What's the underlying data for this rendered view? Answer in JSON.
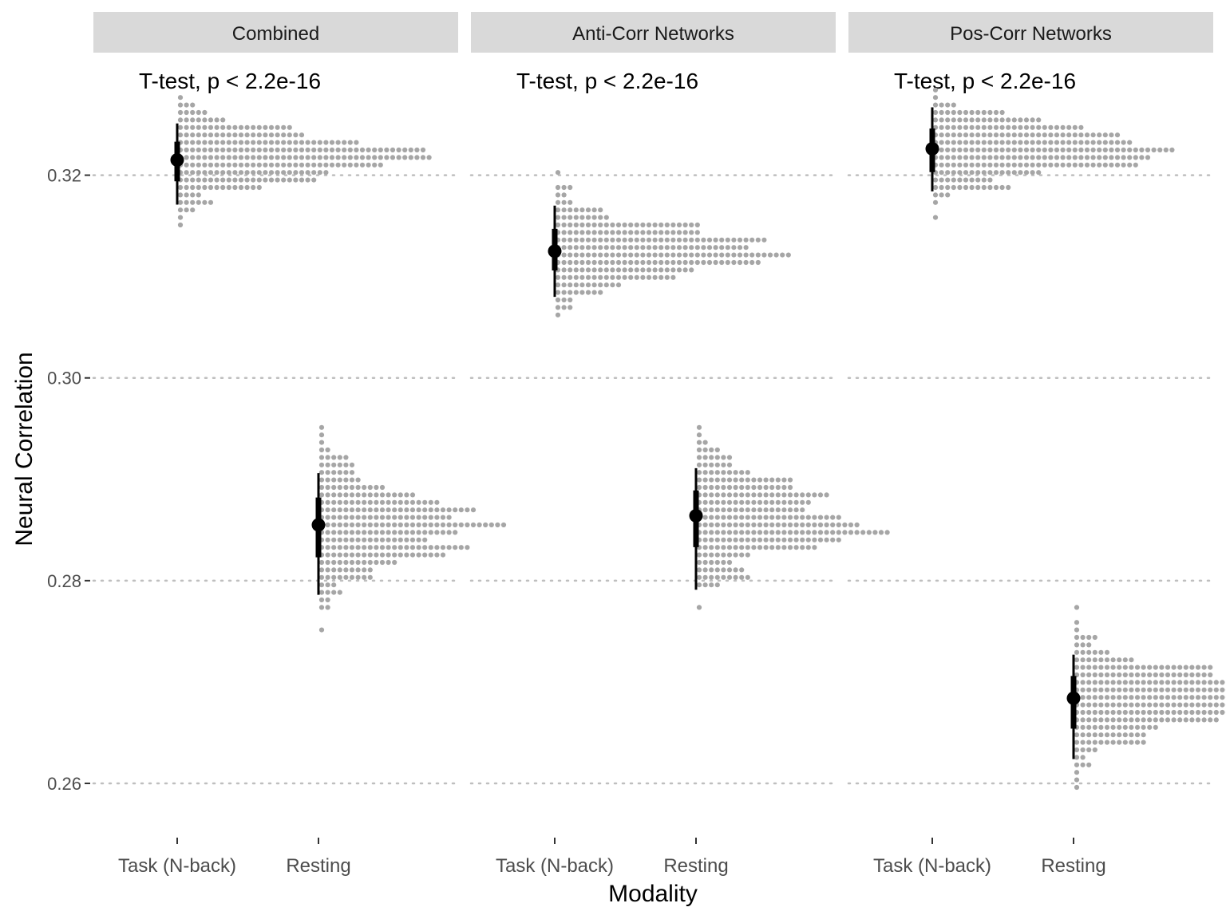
{
  "chart_data": {
    "type": "dotplot",
    "xlabel": "Modality",
    "ylabel": "Neural Correlation",
    "ylim": [
      0.2552,
      0.3313
    ],
    "yticks": [
      0.26,
      0.28,
      0.3,
      0.32
    ],
    "ytick_labels": [
      "0.26",
      "0.28",
      "0.30",
      "0.32"
    ],
    "grid": "horizontal dotted at major y ticks",
    "categories": [
      "Task (N-back)",
      "Resting"
    ],
    "colors": {
      "dots": "#a6a6a6",
      "summary": "#000000",
      "strip_bg": "#d9d9d9",
      "grid": "#bfbfbf"
    },
    "panels": [
      {
        "title": "Combined",
        "annotation": "T-test, p < 2.2e-16",
        "groups": [
          {
            "category": "Task (N-back)",
            "median": 0.3215,
            "interval_66": [
              0.3194,
              0.3233
            ],
            "interval_95": [
              0.3171,
              0.3251
            ]
          },
          {
            "category": "Resting",
            "median": 0.2855,
            "interval_66": [
              0.2823,
              0.2882
            ],
            "interval_95": [
              0.2786,
              0.2906
            ]
          }
        ]
      },
      {
        "title": "Anti-Corr Networks",
        "annotation": "T-test, p < 2.2e-16",
        "groups": [
          {
            "category": "Task (N-back)",
            "median": 0.3125,
            "interval_66": [
              0.3106,
              0.3147
            ],
            "interval_95": [
              0.308,
              0.317
            ]
          },
          {
            "category": "Resting",
            "median": 0.2864,
            "interval_66": [
              0.2833,
              0.2889
            ],
            "interval_95": [
              0.2791,
              0.2911
            ]
          }
        ]
      },
      {
        "title": "Pos-Corr Networks",
        "annotation": "T-test, p < 2.2e-16",
        "groups": [
          {
            "category": "Task (N-back)",
            "median": 0.3226,
            "interval_66": [
              0.3203,
              0.3246
            ],
            "interval_95": [
              0.3184,
              0.3267
            ]
          },
          {
            "category": "Resting",
            "median": 0.2684,
            "interval_66": [
              0.2654,
              0.2706
            ],
            "interval_95": [
              0.2624,
              0.2727
            ]
          }
        ]
      }
    ]
  }
}
